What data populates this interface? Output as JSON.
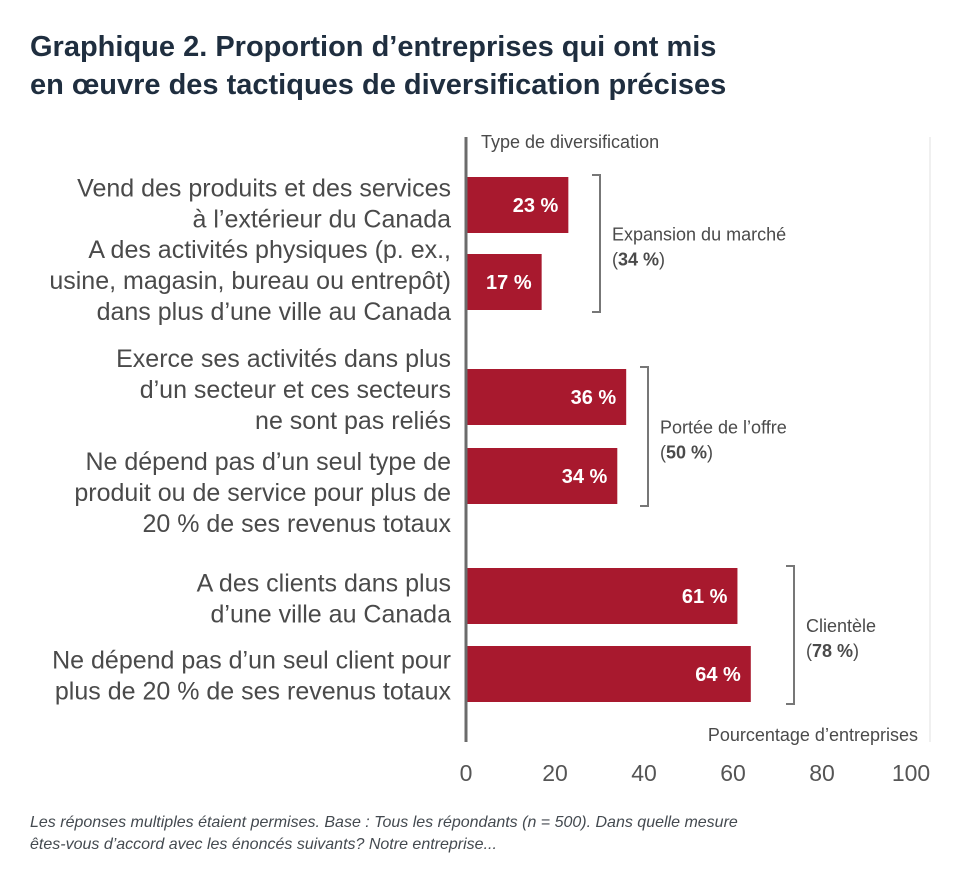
{
  "title_lines": [
    "Graphique 2. Proportion d’entreprises qui ont mis",
    "en œuvre des tactiques de diversification précises"
  ],
  "footnote_lines": [
    "Les réponses multiples étaient permises. Base : Tous les répondants (n = 500). Dans quelle mesure",
    "êtes-vous d’accord avec les énoncés suivants? Notre entreprise..."
  ],
  "colors": {
    "bar": "#a8192e",
    "axis": "#6b6b6b",
    "text": "#4a4a4a",
    "title": "#1f2e3f"
  },
  "chart_data": {
    "type": "bar",
    "orientation": "horizontal",
    "group_axis_label": "Type de diversification",
    "xlabel": "Pourcentage d’entreprises",
    "xlim": [
      0,
      100
    ],
    "xticks": [
      "0",
      "20",
      "40",
      "60",
      "80",
      "100"
    ],
    "categories": [
      [
        "Vend des produits et des services",
        "à l’extérieur du Canada"
      ],
      [
        "A des activités physiques (p. ex.,",
        "usine, magasin, bureau ou entrepôt)",
        "dans plus d’une ville au Canada"
      ],
      [
        "Exerce ses activités dans plus",
        "d’un secteur et ces secteurs",
        "ne sont pas reliés"
      ],
      [
        "Ne dépend pas d’un seul type de",
        "produit ou de service pour plus de",
        "20 % de ses revenus totaux"
      ],
      [
        "A des clients dans plus",
        "d’une ville au Canada"
      ],
      [
        "Ne dépend pas d’un seul client pour",
        "plus de 20 % de ses revenus totaux"
      ]
    ],
    "values": [
      23,
      17,
      36,
      34,
      61,
      64
    ],
    "value_labels": [
      "23 %",
      "17 %",
      "36 %",
      "34 %",
      "61 %",
      "64 %"
    ],
    "groups": [
      {
        "label": "Expansion du marché",
        "total": "34 %",
        "members": [
          0,
          1
        ]
      },
      {
        "label": "Portée de l’offre",
        "total": "50 %",
        "members": [
          2,
          3
        ]
      },
      {
        "label": "Clientèle",
        "total": "78 %",
        "members": [
          4,
          5
        ]
      }
    ]
  }
}
